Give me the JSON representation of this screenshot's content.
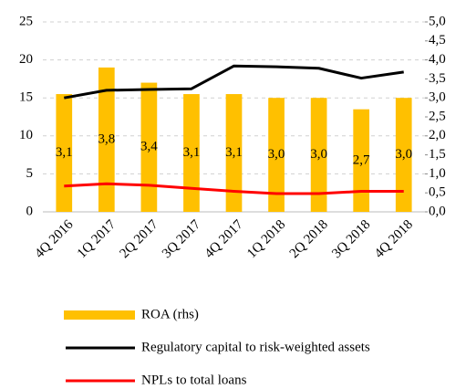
{
  "chart_data": {
    "type": "bar",
    "categories": [
      "4Q 2016",
      "1Q 2017",
      "2Q 2017",
      "3Q 2017",
      "4Q 2017",
      "1Q 2018",
      "2Q 2018",
      "3Q 2018",
      "4Q 2018"
    ],
    "series": [
      {
        "name": "ROA (rhs)",
        "type": "bar",
        "axis": "y2",
        "color": "#ffc000",
        "values": [
          3.1,
          3.8,
          3.4,
          3.1,
          3.1,
          3.0,
          3.0,
          2.7,
          3.0
        ],
        "value_labels": [
          "3,1",
          "3,8",
          "3,4",
          "3,1",
          "3,1",
          "3,0",
          "3,0",
          "2,7",
          "3,0"
        ]
      },
      {
        "name": "Regulatory capital to risk-weighted assets",
        "type": "line",
        "color": "#000000",
        "values": [
          15.0,
          16.0,
          16.1,
          16.2,
          19.2,
          19.1,
          18.9,
          17.6,
          18.4
        ]
      },
      {
        "name": "NPLs to total loans",
        "type": "line",
        "color": "#ff0000",
        "values": [
          3.4,
          3.7,
          3.5,
          3.1,
          2.7,
          2.4,
          2.4,
          2.7,
          2.7
        ]
      }
    ],
    "ylim": [
      0,
      25
    ],
    "yticks": [
      0,
      5,
      10,
      15,
      20,
      25
    ],
    "y2lim": [
      0,
      5
    ],
    "y2ticks": [
      {
        "value": 0,
        "label": "0,0"
      },
      {
        "value": 0.5,
        "label": "0,5"
      },
      {
        "value": 1,
        "label": "1,0"
      },
      {
        "value": 1.5,
        "label": "1,5"
      },
      {
        "value": 2,
        "label": "2,0"
      },
      {
        "value": 2.5,
        "label": "2,5"
      },
      {
        "value": 3,
        "label": "3,0"
      },
      {
        "value": 3.5,
        "label": "3,5"
      },
      {
        "value": 4,
        "label": "4,0"
      },
      {
        "value": 4.5,
        "label": "4,5"
      },
      {
        "value": 5,
        "label": "5,0"
      }
    ],
    "grid": true,
    "legend": "bottom"
  }
}
